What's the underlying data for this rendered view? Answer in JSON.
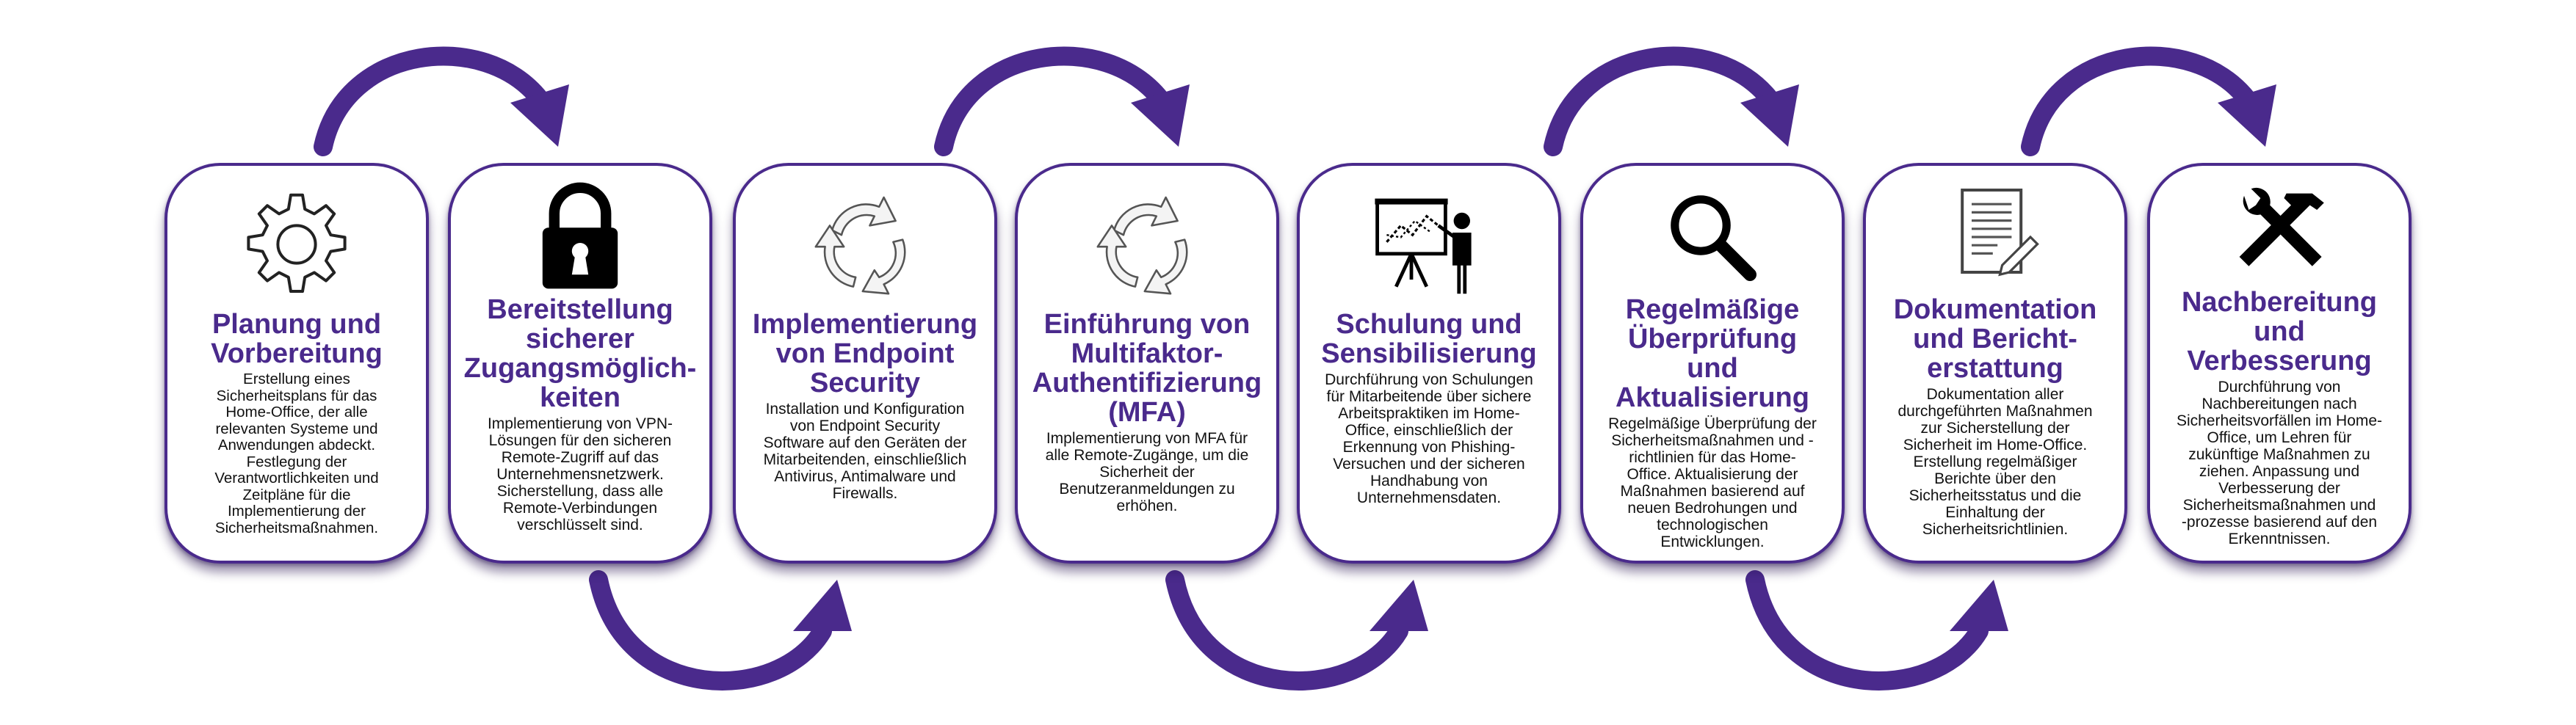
{
  "colors": {
    "accent": "#4a2a8c",
    "text": "#111111",
    "background": "#ffffff"
  },
  "steps": [
    {
      "icon": "gear-icon",
      "title": "Planung und\nVorbereitung",
      "description": "Erstellung eines\nSicherheitsplans für das\nHome-Office, der alle\nrelevanten Systeme und\nAnwendungen abdeckt.\nFestlegung der\nVerantwortlichkeiten und\nZeitpläne für die\nImplementierung der\nSicherheitsmaßnahmen."
    },
    {
      "icon": "padlock-icon",
      "title": "Bereitstellung\nsicherer\nZugangsmöglich-\nkeiten",
      "description": "Implementierung von VPN-\nLösungen für den sicheren\nRemote-Zugriff auf das\nUnternehmensnetzwerk.\nSicherstellung, dass alle\nRemote-Verbindungen\nverschlüsselt sind."
    },
    {
      "icon": "recycle-arrows-icon",
      "title": "Implementierung\nvon Endpoint\nSecurity",
      "description": "Installation und Konfiguration\nvon Endpoint Security\nSoftware auf den Geräten der\nMitarbeitenden, einschließlich\nAntivirus, Antimalware und\nFirewalls."
    },
    {
      "icon": "recycle-arrows-icon",
      "title": "Einführung von\nMultifaktor-\nAuthentifizierung\n(MFA)",
      "description": "Implementierung von MFA für\nalle Remote-Zugänge, um die\nSicherheit der\nBenutzeranmeldungen zu\nerhöhen."
    },
    {
      "icon": "presentation-icon",
      "title": "Schulung und\nSensibilisierung",
      "description": "Durchführung von Schulungen\nfür Mitarbeitende über sichere\nArbeitspraktiken im Home-\nOffice, einschließlich der\nErkennung von Phishing-\nVersuchen und der sicheren\nHandhabung von\nUnternehmensdaten."
    },
    {
      "icon": "magnifier-icon",
      "title": "Regelmäßige\nÜberprüfung und\nAktualisierung",
      "description": "Regelmäßige Überprüfung der\nSicherheitsmaßnahmen und -\nrichtlinien für das Home-\nOffice. Aktualisierung der\nMaßnahmen basierend auf\nneuen Bedrohungen und\ntechnologischen\nEntwicklungen."
    },
    {
      "icon": "document-icon",
      "title": "Dokumentation\nund Bericht-\nerstattung",
      "description": "Dokumentation aller\ndurchgeführten Maßnahmen\nzur Sicherstellung der\nSicherheit im Home-Office.\nErstellung regelmäßiger\nBerichte über den\nSicherheitsstatus und die\nEinhaltung der\nSicherheitsrichtlinien."
    },
    {
      "icon": "tools-icon",
      "title": "Nachbereitung\nund\nVerbesserung",
      "description": "Durchführung von\nNachbereitungen nach\nSicherheitsvorfällen im Home-\nOffice, um Lehren für\nzukünftige Maßnahmen zu\nziehen. Anpassung und\nVerbesserung der\nSicherheitsmaßnahmen und\n-prozesse basierend auf den\nErkenntnissen."
    }
  ]
}
